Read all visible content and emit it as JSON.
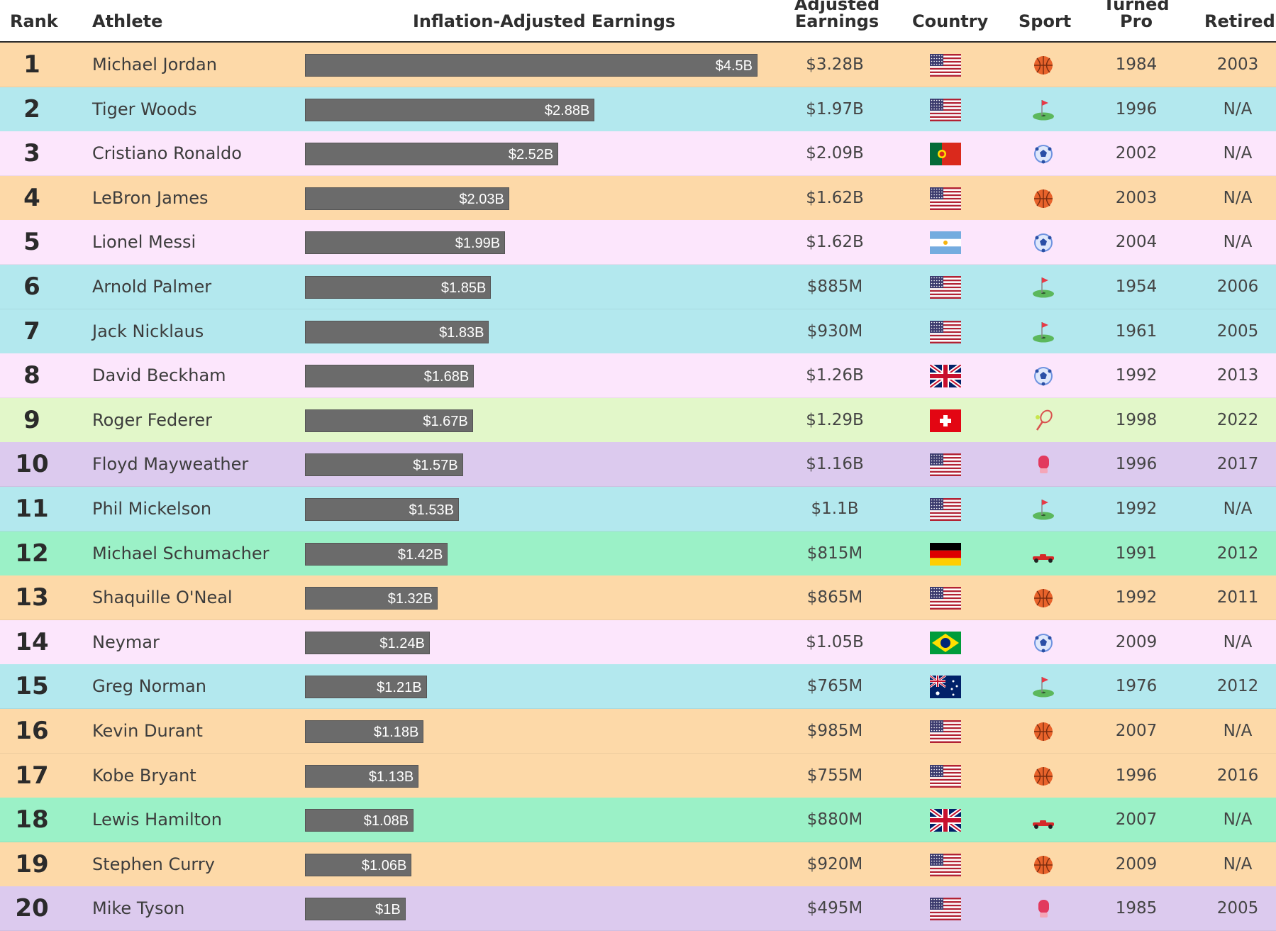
{
  "header": {
    "rank": "Rank",
    "athlete": "Inflation-Adjusted Earnings",
    "athlete_col": "Athlete",
    "adjusted_top": "Adjusted",
    "adjusted_bottom": "Earnings",
    "country": "Country",
    "sport": "Sport",
    "turned_top": "Turned",
    "turned_bottom": "Pro",
    "retired": "Retired"
  },
  "colors": {
    "basketball": "#fdd9a8",
    "golf": "#b3e8ee",
    "soccer": "#fce6fc",
    "tennis": "#e2f7c9",
    "boxing": "#dccaee",
    "racing": "#9bf1c7",
    "bar": "#6b6b6b"
  },
  "chart_data": {
    "type": "bar",
    "title": "Inflation-Adjusted Earnings",
    "unit": "billions USD",
    "xlim": [
      0,
      4.5
    ],
    "categories": [
      "Michael Jordan",
      "Tiger Woods",
      "Cristiano Ronaldo",
      "LeBron James",
      "Lionel Messi",
      "Arnold Palmer",
      "Jack Nicklaus",
      "David Beckham",
      "Roger Federer",
      "Floyd Mayweather",
      "Phil Mickelson",
      "Michael Schumacher",
      "Shaquille O'Neal",
      "Neymar",
      "Greg Norman",
      "Kevin Durant",
      "Kobe Bryant",
      "Lewis Hamilton",
      "Stephen Curry",
      "Mike Tyson"
    ],
    "values": [
      4.5,
      2.88,
      2.52,
      2.03,
      1.99,
      1.85,
      1.83,
      1.68,
      1.67,
      1.57,
      1.53,
      1.42,
      1.32,
      1.24,
      1.21,
      1.18,
      1.13,
      1.08,
      1.06,
      1.0
    ],
    "value_labels": [
      "$4.5B",
      "$2.88B",
      "$2.52B",
      "$2.03B",
      "$1.99B",
      "$1.85B",
      "$1.83B",
      "$1.68B",
      "$1.67B",
      "$1.57B",
      "$1.53B",
      "$1.42B",
      "$1.32B",
      "$1.24B",
      "$1.21B",
      "$1.18B",
      "$1.13B",
      "$1.08B",
      "$1.06B",
      "$1B"
    ]
  },
  "rows": [
    {
      "rank": "1",
      "name": "Michael Jordan",
      "adjusted": "$3.28B",
      "country": "usa",
      "sport": "basketball",
      "turned_pro": "1984",
      "retired": "2003"
    },
    {
      "rank": "2",
      "name": "Tiger Woods",
      "adjusted": "$1.97B",
      "country": "usa",
      "sport": "golf",
      "turned_pro": "1996",
      "retired": "N/A"
    },
    {
      "rank": "3",
      "name": "Cristiano Ronaldo",
      "adjusted": "$2.09B",
      "country": "portugal",
      "sport": "soccer",
      "turned_pro": "2002",
      "retired": "N/A"
    },
    {
      "rank": "4",
      "name": "LeBron James",
      "adjusted": "$1.62B",
      "country": "usa",
      "sport": "basketball",
      "turned_pro": "2003",
      "retired": "N/A"
    },
    {
      "rank": "5",
      "name": "Lionel Messi",
      "adjusted": "$1.62B",
      "country": "argentina",
      "sport": "soccer",
      "turned_pro": "2004",
      "retired": "N/A"
    },
    {
      "rank": "6",
      "name": "Arnold Palmer",
      "adjusted": "$885M",
      "country": "usa",
      "sport": "golf",
      "turned_pro": "1954",
      "retired": "2006"
    },
    {
      "rank": "7",
      "name": "Jack Nicklaus",
      "adjusted": "$930M",
      "country": "usa",
      "sport": "golf",
      "turned_pro": "1961",
      "retired": "2005"
    },
    {
      "rank": "8",
      "name": "David Beckham",
      "adjusted": "$1.26B",
      "country": "uk",
      "sport": "soccer",
      "turned_pro": "1992",
      "retired": "2013"
    },
    {
      "rank": "9",
      "name": "Roger Federer",
      "adjusted": "$1.29B",
      "country": "switzerland",
      "sport": "tennis",
      "turned_pro": "1998",
      "retired": "2022"
    },
    {
      "rank": "10",
      "name": "Floyd Mayweather",
      "adjusted": "$1.16B",
      "country": "usa",
      "sport": "boxing",
      "turned_pro": "1996",
      "retired": "2017"
    },
    {
      "rank": "11",
      "name": "Phil Mickelson",
      "adjusted": "$1.1B",
      "country": "usa",
      "sport": "golf",
      "turned_pro": "1992",
      "retired": "N/A"
    },
    {
      "rank": "12",
      "name": "Michael Schumacher",
      "adjusted": "$815M",
      "country": "germany",
      "sport": "racing",
      "turned_pro": "1991",
      "retired": "2012"
    },
    {
      "rank": "13",
      "name": "Shaquille O'Neal",
      "adjusted": "$865M",
      "country": "usa",
      "sport": "basketball",
      "turned_pro": "1992",
      "retired": "2011"
    },
    {
      "rank": "14",
      "name": "Neymar",
      "adjusted": "$1.05B",
      "country": "brazil",
      "sport": "soccer",
      "turned_pro": "2009",
      "retired": "N/A"
    },
    {
      "rank": "15",
      "name": "Greg Norman",
      "adjusted": "$765M",
      "country": "australia",
      "sport": "golf",
      "turned_pro": "1976",
      "retired": "2012"
    },
    {
      "rank": "16",
      "name": "Kevin Durant",
      "adjusted": "$985M",
      "country": "usa",
      "sport": "basketball",
      "turned_pro": "2007",
      "retired": "N/A"
    },
    {
      "rank": "17",
      "name": "Kobe Bryant",
      "adjusted": "$755M",
      "country": "usa",
      "sport": "basketball",
      "turned_pro": "1996",
      "retired": "2016"
    },
    {
      "rank": "18",
      "name": "Lewis Hamilton",
      "adjusted": "$880M",
      "country": "uk",
      "sport": "racing",
      "turned_pro": "2007",
      "retired": "N/A"
    },
    {
      "rank": "19",
      "name": "Stephen Curry",
      "adjusted": "$920M",
      "country": "usa",
      "sport": "basketball",
      "turned_pro": "2009",
      "retired": "N/A"
    },
    {
      "rank": "20",
      "name": "Mike Tyson",
      "adjusted": "$495M",
      "country": "usa",
      "sport": "boxing",
      "turned_pro": "1985",
      "retired": "2005"
    }
  ]
}
